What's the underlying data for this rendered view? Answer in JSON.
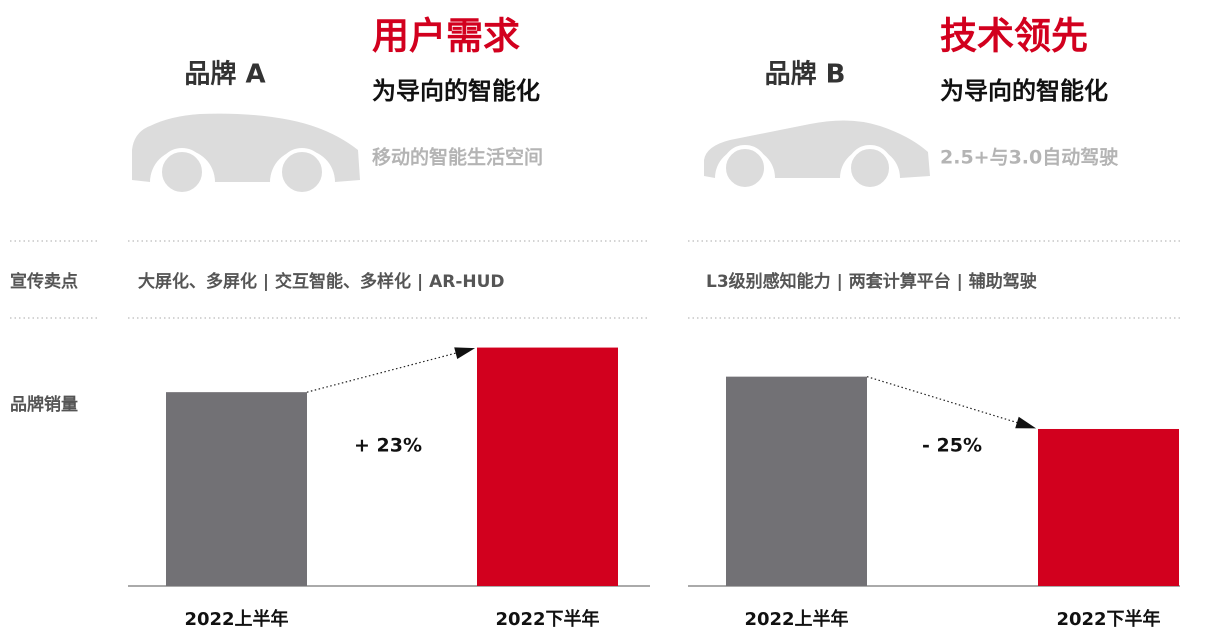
{
  "row_labels": {
    "selling_points": "宣传卖点",
    "sales": "品牌销量"
  },
  "chart_data": [
    {
      "type": "bar",
      "title": "品牌 A",
      "headline": "用户需求",
      "subtitle": "为导向的智能化",
      "tagline": "移动的智能生活空间",
      "selling_points": "大屏化、多屏化 | 交互智能、多样化 | AR-HUD",
      "categories": [
        "2022上半年",
        "2022下半年"
      ],
      "values": [
        100,
        123
      ],
      "colors": [
        "#727175",
        "#d2001e"
      ],
      "ylim": [
        0,
        130
      ],
      "annotation": "+ 23%"
    },
    {
      "type": "bar",
      "title": "品牌 B",
      "headline": "技术领先",
      "subtitle": "为导向的智能化",
      "tagline": "2.5+与3.0自动驾驶",
      "selling_points": "L3级别感知能力 | 两套计算平台 | 辅助驾驶",
      "categories": [
        "2022上半年",
        "2022下半年"
      ],
      "values": [
        108,
        81
      ],
      "colors": [
        "#727175",
        "#d2001e"
      ],
      "ylim": [
        0,
        130
      ],
      "annotation": "- 25%"
    }
  ]
}
